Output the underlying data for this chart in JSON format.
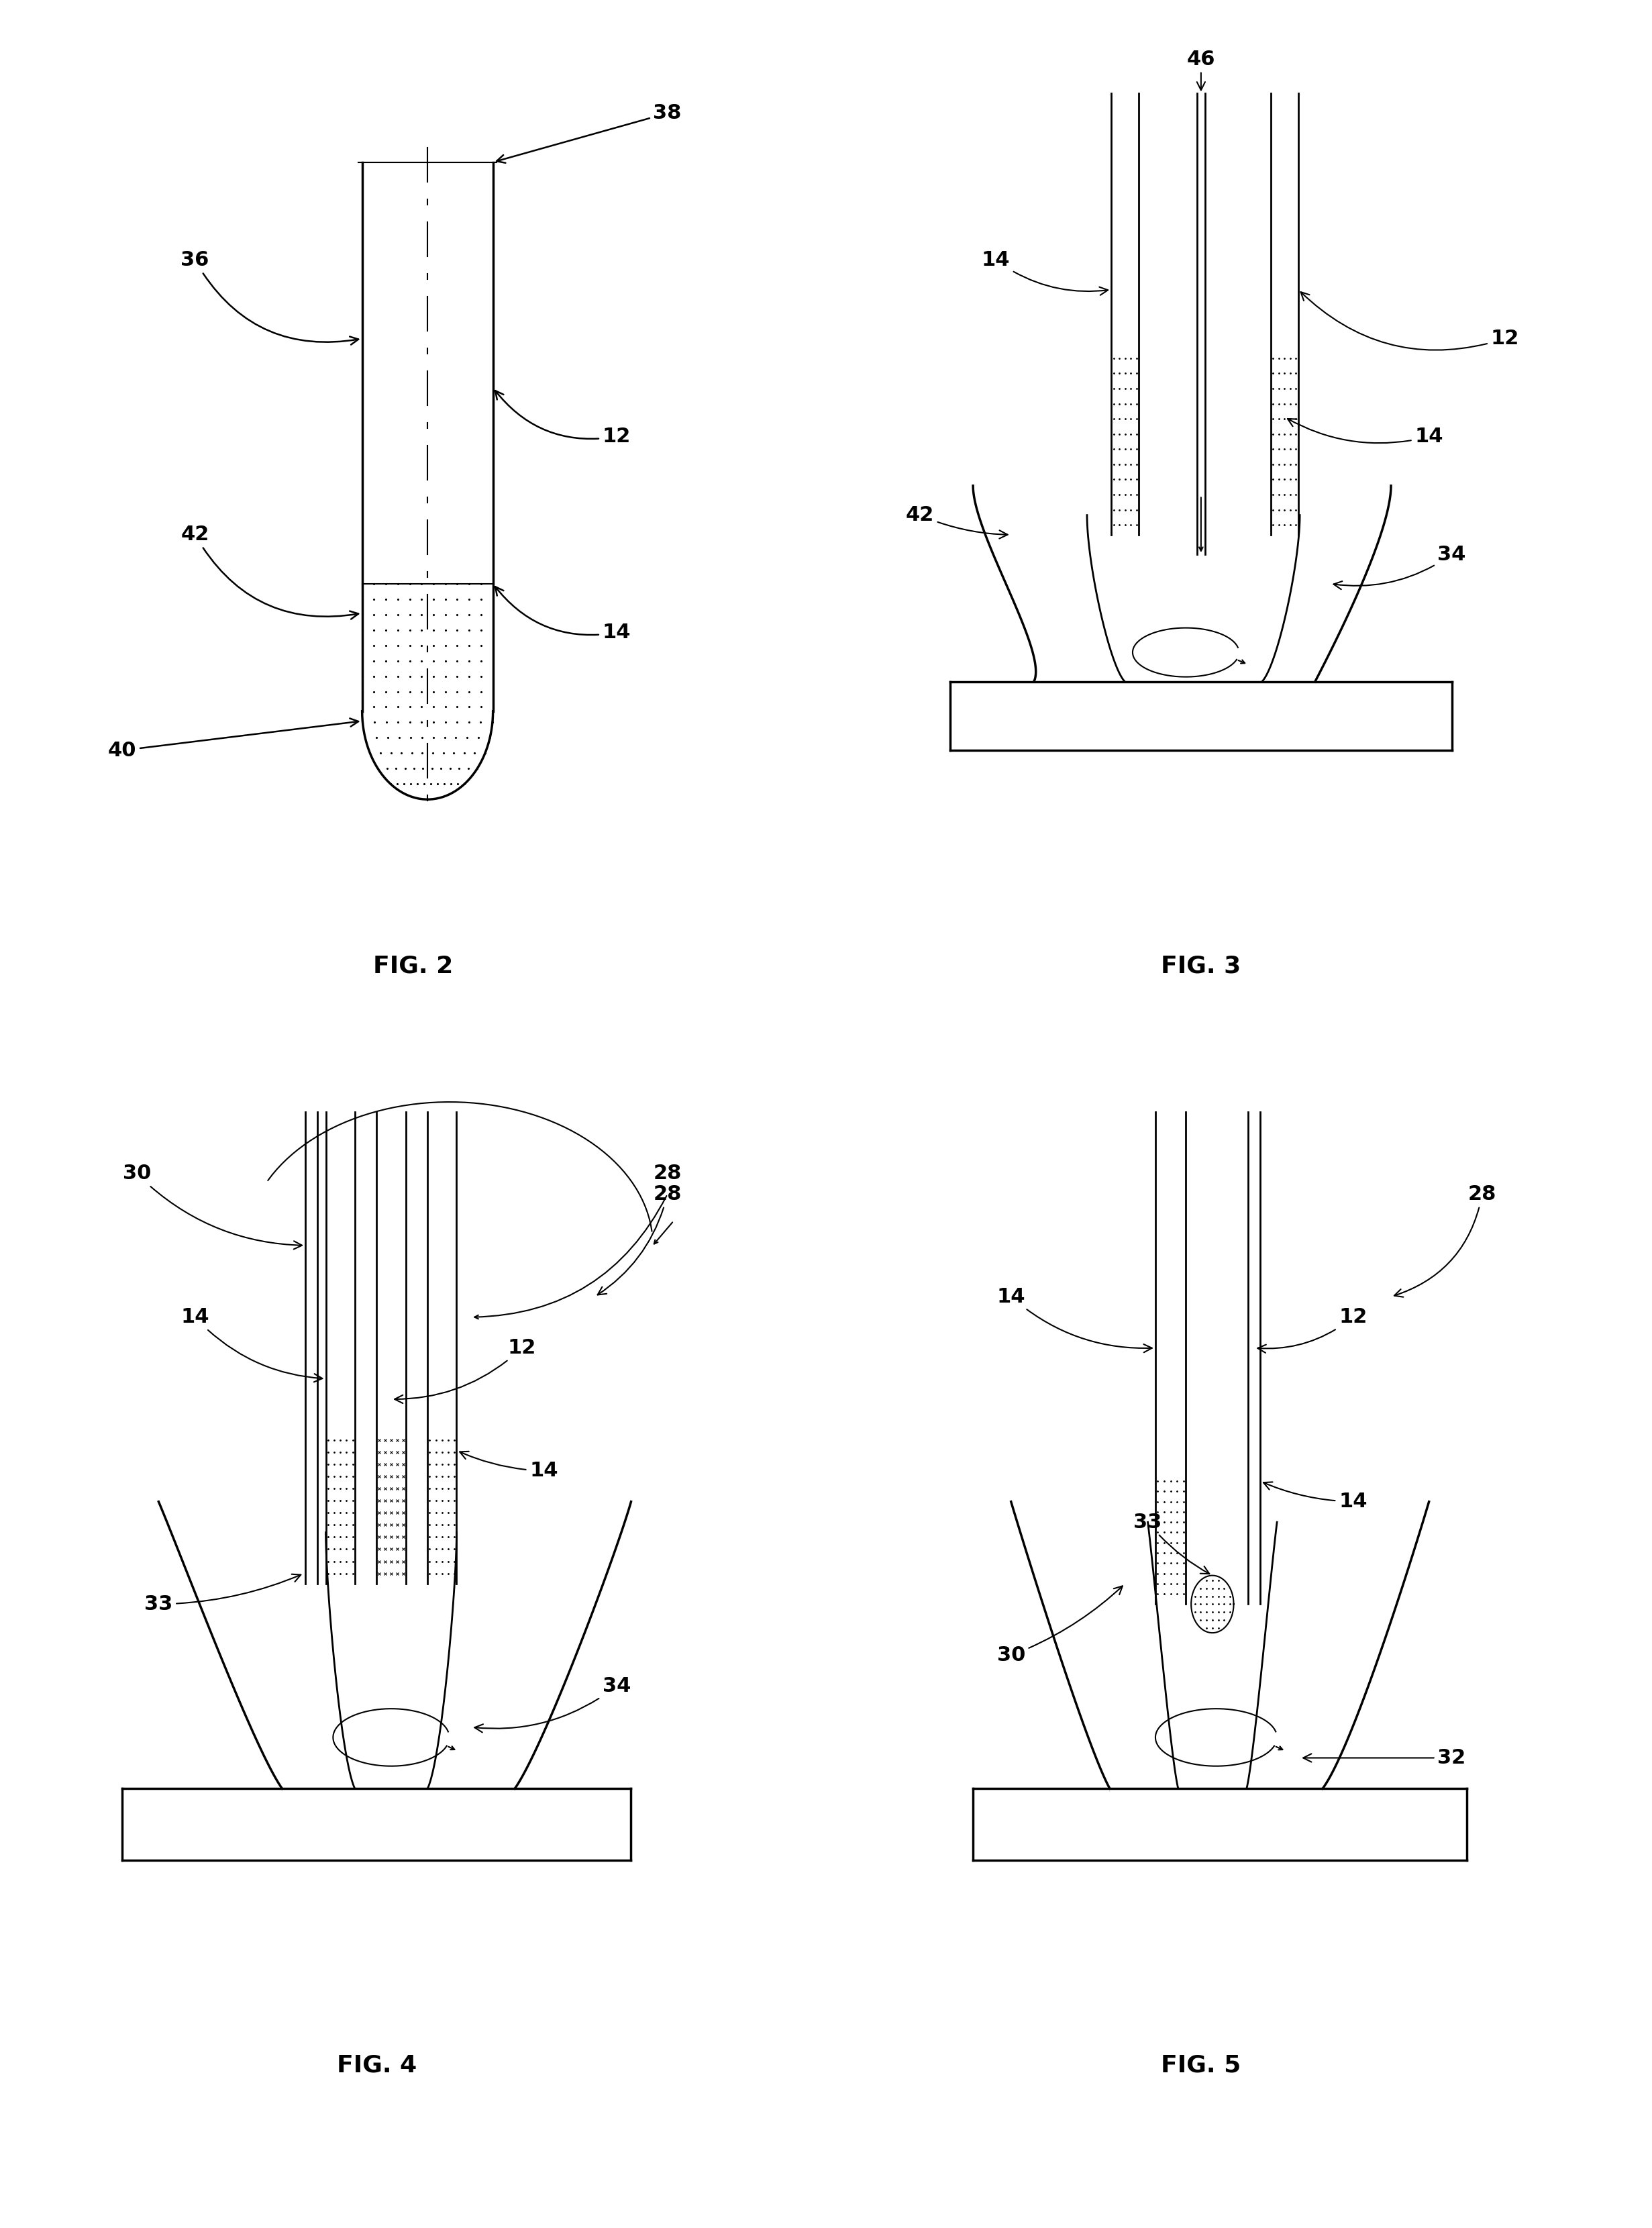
{
  "bg_color": "#ffffff",
  "lw_thick": 2.5,
  "lw_med": 2.0,
  "lw_thin": 1.5,
  "number_fontsize": 22,
  "label_fontsize": 26,
  "fig_labels": [
    "FIG. 2",
    "FIG. 3",
    "FIG. 4",
    "FIG. 5"
  ]
}
